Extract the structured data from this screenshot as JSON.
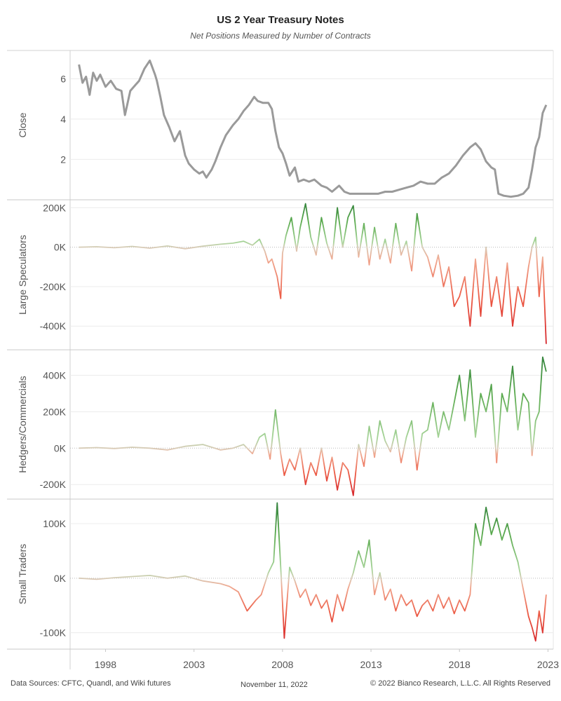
{
  "chart_data": {
    "title": "US 2 Year Treasury Notes",
    "subtitle": "Net Positions Measured by Number of Contracts",
    "type": "line",
    "x_ticks": [
      "1998",
      "2003",
      "2008",
      "2013",
      "2018",
      "2023"
    ],
    "x_range": [
      1996.0,
      2023.3
    ],
    "panels": [
      {
        "name": "Close",
        "ylabel": "Close",
        "yticks": [
          2,
          4,
          6
        ],
        "ytick_labels": [
          "2",
          "4",
          "6"
        ],
        "ylim": [
          0,
          7.4
        ],
        "color": "#9a9a9a",
        "x": [
          1996.5,
          1996.7,
          1996.9,
          1997.1,
          1997.3,
          1997.5,
          1997.7,
          1998.0,
          1998.3,
          1998.6,
          1998.9,
          1999.1,
          1999.4,
          1999.7,
          1999.9,
          2000.2,
          2000.5,
          2000.8,
          2000.9,
          2001.1,
          2001.3,
          2001.6,
          2001.9,
          2002.2,
          2002.5,
          2002.7,
          2003.0,
          2003.3,
          2003.5,
          2003.7,
          2004.0,
          2004.2,
          2004.5,
          2004.8,
          2005.2,
          2005.5,
          2005.8,
          2006.1,
          2006.4,
          2006.6,
          2006.9,
          2007.2,
          2007.4,
          2007.6,
          2007.8,
          2008.0,
          2008.2,
          2008.4,
          2008.7,
          2008.9,
          2009.2,
          2009.5,
          2009.8,
          2010.2,
          2010.5,
          2010.8,
          2011.2,
          2011.5,
          2011.8,
          2012.2,
          2012.6,
          2013.0,
          2013.4,
          2013.8,
          2014.2,
          2014.6,
          2015.0,
          2015.4,
          2015.8,
          2016.2,
          2016.6,
          2017.0,
          2017.4,
          2017.8,
          2018.2,
          2018.6,
          2018.9,
          2019.2,
          2019.5,
          2019.8,
          2020.0,
          2020.2,
          2020.5,
          2020.9,
          2021.3,
          2021.6,
          2021.9,
          2022.1,
          2022.3,
          2022.5,
          2022.7,
          2022.9
        ],
        "values": [
          6.7,
          5.8,
          6.1,
          5.2,
          6.3,
          5.9,
          6.2,
          5.6,
          5.9,
          5.5,
          5.4,
          4.2,
          5.4,
          5.7,
          5.9,
          6.5,
          6.9,
          6.2,
          5.9,
          5.1,
          4.2,
          3.6,
          2.9,
          3.4,
          2.2,
          1.8,
          1.5,
          1.3,
          1.4,
          1.1,
          1.5,
          1.9,
          2.6,
          3.2,
          3.7,
          4.0,
          4.4,
          4.7,
          5.1,
          4.9,
          4.8,
          4.8,
          4.5,
          3.4,
          2.6,
          2.3,
          1.8,
          1.2,
          1.6,
          0.9,
          1.0,
          0.9,
          1.0,
          0.7,
          0.6,
          0.4,
          0.7,
          0.4,
          0.3,
          0.3,
          0.3,
          0.3,
          0.3,
          0.4,
          0.4,
          0.5,
          0.6,
          0.7,
          0.9,
          0.8,
          0.8,
          1.1,
          1.3,
          1.7,
          2.2,
          2.6,
          2.8,
          2.5,
          1.9,
          1.6,
          1.5,
          0.3,
          0.2,
          0.15,
          0.2,
          0.3,
          0.6,
          1.5,
          2.6,
          3.1,
          4.3,
          4.7
        ]
      },
      {
        "name": "Large Speculators",
        "ylabel": "Large Speculators",
        "yticks": [
          200000,
          0,
          -200000,
          -400000
        ],
        "ytick_labels": [
          "200K",
          "0K",
          "-200K",
          "-400K"
        ],
        "ylim": [
          -520000,
          240000
        ],
        "x": [
          1996.5,
          1997.5,
          1998.5,
          1999.5,
          2000.5,
          2001.5,
          2002.5,
          2003.5,
          2004.5,
          2005.2,
          2005.8,
          2006.3,
          2006.7,
          2007.0,
          2007.2,
          2007.4,
          2007.7,
          2007.9,
          2008.0,
          2008.2,
          2008.5,
          2008.8,
          2009.0,
          2009.3,
          2009.6,
          2009.9,
          2010.2,
          2010.5,
          2010.8,
          2011.1,
          2011.4,
          2011.7,
          2012.0,
          2012.3,
          2012.6,
          2012.9,
          2013.2,
          2013.5,
          2013.8,
          2014.1,
          2014.4,
          2014.7,
          2015.0,
          2015.3,
          2015.6,
          2015.9,
          2016.2,
          2016.5,
          2016.8,
          2017.1,
          2017.4,
          2017.7,
          2018.0,
          2018.3,
          2018.6,
          2018.9,
          2019.2,
          2019.5,
          2019.8,
          2020.1,
          2020.4,
          2020.7,
          2021.0,
          2021.3,
          2021.6,
          2021.9,
          2022.1,
          2022.3,
          2022.5,
          2022.7,
          2022.9
        ],
        "values": [
          0,
          2000,
          -3000,
          4000,
          -5000,
          6000,
          -8000,
          5000,
          15000,
          20000,
          30000,
          10000,
          40000,
          -20000,
          -80000,
          -60000,
          -150000,
          -260000,
          -30000,
          60000,
          150000,
          -20000,
          100000,
          220000,
          50000,
          -40000,
          150000,
          20000,
          -60000,
          200000,
          0,
          150000,
          210000,
          -50000,
          120000,
          -90000,
          100000,
          -60000,
          40000,
          -80000,
          120000,
          -40000,
          30000,
          -120000,
          170000,
          0,
          -50000,
          -150000,
          -40000,
          -200000,
          -100000,
          -300000,
          -250000,
          -150000,
          -400000,
          -60000,
          -350000,
          0,
          -300000,
          -150000,
          -350000,
          -80000,
          -400000,
          -200000,
          -300000,
          -100000,
          0,
          50000,
          -250000,
          -50000,
          -490000
        ]
      },
      {
        "name": "Hedgers/Commercials",
        "ylabel": "Hedgers/Commercials",
        "yticks": [
          400000,
          200000,
          0,
          -200000
        ],
        "ytick_labels": [
          "400K",
          "200K",
          "0K",
          "-200K"
        ],
        "ylim": [
          -280000,
          540000
        ],
        "x": [
          1996.5,
          1997.5,
          1998.5,
          1999.5,
          2000.5,
          2001.5,
          2002.5,
          2003.5,
          2004.5,
          2005.2,
          2005.8,
          2006.3,
          2006.7,
          2007.0,
          2007.3,
          2007.6,
          2007.9,
          2008.1,
          2008.4,
          2008.7,
          2009.0,
          2009.3,
          2009.6,
          2009.9,
          2010.2,
          2010.5,
          2010.8,
          2011.1,
          2011.4,
          2011.7,
          2012.0,
          2012.3,
          2012.6,
          2012.9,
          2013.2,
          2013.5,
          2013.8,
          2014.1,
          2014.4,
          2014.7,
          2015.0,
          2015.3,
          2015.6,
          2015.9,
          2016.2,
          2016.5,
          2016.8,
          2017.1,
          2017.4,
          2017.7,
          2018.0,
          2018.3,
          2018.6,
          2018.9,
          2019.2,
          2019.5,
          2019.8,
          2020.1,
          2020.4,
          2020.7,
          2021.0,
          2021.3,
          2021.6,
          2021.9,
          2022.1,
          2022.3,
          2022.5,
          2022.7,
          2022.9
        ],
        "values": [
          0,
          3000,
          -2000,
          5000,
          0,
          -10000,
          10000,
          20000,
          -10000,
          0,
          20000,
          -30000,
          60000,
          80000,
          -60000,
          210000,
          -30000,
          -150000,
          -60000,
          -120000,
          0,
          -200000,
          -80000,
          -150000,
          0,
          -180000,
          -50000,
          -230000,
          -80000,
          -120000,
          -260000,
          20000,
          -100000,
          120000,
          -50000,
          150000,
          40000,
          -20000,
          100000,
          -80000,
          60000,
          150000,
          -120000,
          80000,
          100000,
          250000,
          60000,
          200000,
          100000,
          250000,
          400000,
          150000,
          430000,
          60000,
          300000,
          200000,
          350000,
          -80000,
          300000,
          200000,
          450000,
          100000,
          300000,
          250000,
          -40000,
          150000,
          200000,
          500000,
          420000
        ]
      },
      {
        "name": "Small Traders",
        "ylabel": "Small Traders",
        "yticks": [
          100000,
          0,
          -100000
        ],
        "ytick_labels": [
          "100K",
          "0K",
          "-100K"
        ],
        "ylim": [
          -130000,
          145000
        ],
        "x": [
          1996.5,
          1997.5,
          1998.5,
          1999.5,
          2000.5,
          2001.5,
          2002.5,
          2003.5,
          2004.5,
          2005.0,
          2005.5,
          2006.0,
          2006.5,
          2006.8,
          2007.2,
          2007.5,
          2007.7,
          2007.9,
          2008.1,
          2008.4,
          2008.7,
          2009.0,
          2009.3,
          2009.6,
          2009.9,
          2010.2,
          2010.5,
          2010.8,
          2011.1,
          2011.4,
          2011.7,
          2012.0,
          2012.3,
          2012.6,
          2012.9,
          2013.2,
          2013.5,
          2013.8,
          2014.1,
          2014.4,
          2014.7,
          2015.0,
          2015.3,
          2015.6,
          2015.9,
          2016.2,
          2016.5,
          2016.8,
          2017.1,
          2017.4,
          2017.7,
          2018.0,
          2018.3,
          2018.6,
          2018.9,
          2019.2,
          2019.5,
          2019.8,
          2020.1,
          2020.4,
          2020.7,
          2021.0,
          2021.3,
          2021.6,
          2021.9,
          2022.1,
          2022.3,
          2022.5,
          2022.7,
          2022.9
        ],
        "values": [
          0,
          -2000,
          1000,
          3000,
          5000,
          0,
          4000,
          -5000,
          -10000,
          -15000,
          -25000,
          -60000,
          -40000,
          -30000,
          10000,
          30000,
          138000,
          20000,
          -110000,
          20000,
          -5000,
          -35000,
          -20000,
          -50000,
          -30000,
          -55000,
          -40000,
          -80000,
          -30000,
          -60000,
          -20000,
          10000,
          50000,
          20000,
          70000,
          -30000,
          10000,
          -40000,
          -20000,
          -60000,
          -30000,
          -50000,
          -40000,
          -70000,
          -50000,
          -40000,
          -60000,
          -30000,
          -55000,
          -35000,
          -65000,
          -40000,
          -60000,
          -30000,
          100000,
          60000,
          130000,
          80000,
          110000,
          70000,
          100000,
          60000,
          30000,
          -20000,
          -70000,
          -90000,
          -115000,
          -60000,
          -100000,
          -30000
        ]
      }
    ]
  },
  "footer": {
    "sources": "Data Sources: CFTC, Quandl, and Wiki futures",
    "date": "November 11, 2022",
    "copyright": "© 2022 Bianco Research, L.L.C. All Rights Reserved"
  }
}
